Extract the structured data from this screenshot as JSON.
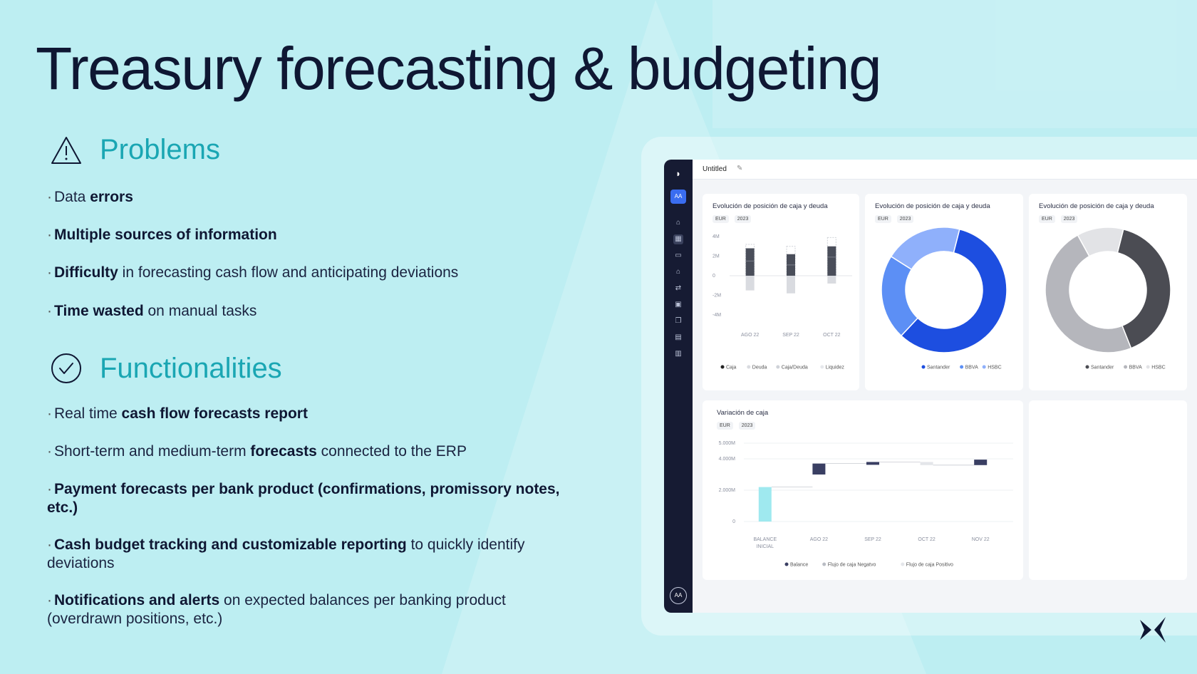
{
  "slide": {
    "title": "Treasury forecasting & budgeting",
    "problems": {
      "heading": "Problems",
      "icon": "warning-triangle-icon",
      "items": [
        {
          "pre": "Data ",
          "bold": "errors",
          "post": ""
        },
        {
          "pre": "",
          "bold": "Multiple sources of information",
          "post": ""
        },
        {
          "pre": "",
          "bold": "Difficulty",
          "post": " in forecasting cash flow and anticipating deviations"
        },
        {
          "pre": "",
          "bold": "Time wasted",
          "post": " on manual tasks"
        }
      ]
    },
    "functionalities": {
      "heading": "Functionalities",
      "icon": "check-circle-icon",
      "items": [
        {
          "pre": "Real time ",
          "bold": "cash flow forecasts report",
          "post": ""
        },
        {
          "pre": "Short-term and medium-term ",
          "bold": "forecasts",
          "post": " connected to the ERP"
        },
        {
          "pre": "",
          "bold": "Payment forecasts per bank product (confirmations, promissory notes, etc.)",
          "post": ""
        },
        {
          "pre": "",
          "bold": "Cash budget tracking and customizable reporting",
          "post": " to quickly identify deviations"
        },
        {
          "pre": "",
          "bold": "Notifications and alerts",
          "post": " on expected balances per banking product (overdrawn positions, etc.)"
        }
      ]
    }
  },
  "dashboard": {
    "doc_title": "Untitled",
    "sidebar": {
      "badge": "AA",
      "avatar": "AA",
      "icons": [
        "logo-icon",
        "home-icon",
        "grid-icon",
        "wallet-icon",
        "bank-icon",
        "transfer-icon",
        "ledger-icon",
        "cards-icon",
        "document-icon",
        "report-icon"
      ]
    },
    "filters": {
      "currency": "EUR",
      "year": "2023"
    },
    "cards": {
      "bar_card": {
        "title": "Evolución de posición de caja y deuda"
      },
      "donut_blue": {
        "title": "Evolución de posición de caja y deuda"
      },
      "donut_grey": {
        "title": "Evolución de posición de caja y deuda"
      },
      "waterfall": {
        "title": "Variación de caja"
      }
    }
  },
  "chart_data": [
    {
      "type": "bar",
      "title": "Evolución de posición de caja y deuda",
      "categories": [
        "AGO 22",
        "SEP 22",
        "OCT 22"
      ],
      "y_ticks": [
        "4M",
        "2M",
        "0",
        "-2M",
        "-4M"
      ],
      "ylim": [
        -4,
        4
      ],
      "series": [
        {
          "name": "Caja",
          "values": [
            2.8,
            2.2,
            3.0
          ]
        },
        {
          "name": "Deuda",
          "values": [
            -1.5,
            -1.8,
            -0.8
          ]
        },
        {
          "name": "Caja/Deuda",
          "values": [
            3.2,
            3.0,
            3.9
          ]
        },
        {
          "name": "Liquidez",
          "values": [
            1.5,
            1.1,
            1.9
          ]
        }
      ],
      "colors": {
        "Caja": "#4a4e5a",
        "Deuda": "#d9dbe0",
        "Caja/Deuda": "#cfd2d8",
        "Liquidez": "#e6e8ec"
      }
    },
    {
      "type": "pie",
      "title": "Evolución de posición de caja y deuda",
      "labels": [
        "Santander",
        "BBVA",
        "HSBC"
      ],
      "values": [
        58,
        22,
        20
      ],
      "colors": [
        "#1d4ee0",
        "#5c8ff5",
        "#8fb0fb"
      ]
    },
    {
      "type": "pie",
      "title": "Evolución de posición de caja y deuda",
      "labels": [
        "Santander",
        "BBVA",
        "HSBC"
      ],
      "values": [
        40,
        48,
        12
      ],
      "colors": [
        "#4b4c53",
        "#b5b6bc",
        "#e2e3e6"
      ]
    },
    {
      "type": "bar",
      "subtype": "waterfall",
      "title": "Variación de caja",
      "categories": [
        "BALANCE INICIAL",
        "AGO 22",
        "SEP 22",
        "OCT 22",
        "NOV 22"
      ],
      "y_ticks": [
        "5.000M",
        "4.000M",
        "2.000M",
        "0"
      ],
      "ylim": [
        0,
        5000
      ],
      "steps": [
        {
          "start": 0,
          "end": 2200,
          "kind": "Balance"
        },
        {
          "start": 3000,
          "end": 3700,
          "kind": "Flujo de caja Positivo"
        },
        {
          "start": 3700,
          "end": 3800,
          "kind": "Flujo de caja Positivo"
        },
        {
          "start": 3800,
          "end": 3600,
          "kind": "Flujo de caja Negatvo"
        },
        {
          "start": 3600,
          "end": 3950,
          "kind": "Flujo de caja Positivo"
        }
      ],
      "legend": [
        "Balance",
        "Flujo de caja Negatvo",
        "Flujo de caja Positivo"
      ],
      "colors": {
        "Balance": "#9fe9ef",
        "Flujo de caja Positivo": "#3a3f63",
        "Flujo de caja Negatvo": "#e4e6ea"
      }
    }
  ]
}
